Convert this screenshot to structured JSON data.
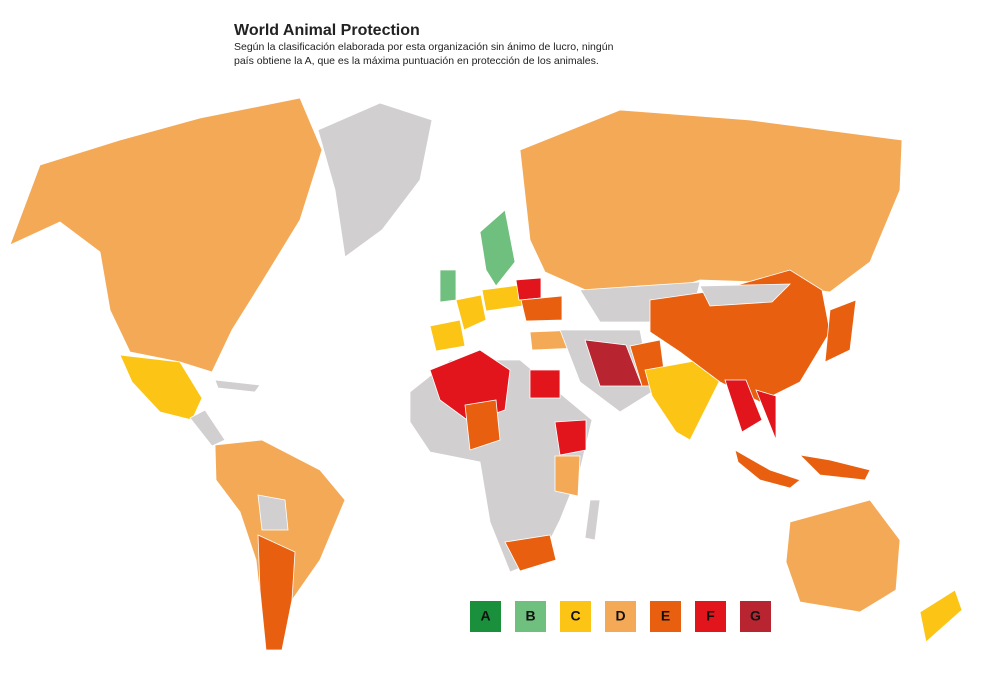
{
  "header": {
    "title": "World Animal Protection",
    "subtitle": [
      "Según la clasificación elaborada por esta organización sin ánimo de lucro, ningún",
      "país obtiene la A, que es la máxima puntuación en protección de los animales."
    ]
  },
  "legend": [
    {
      "label": "A",
      "color": "#1a8f3c"
    },
    {
      "label": "B",
      "color": "#6fbf7f"
    },
    {
      "label": "C",
      "color": "#fcc515"
    },
    {
      "label": "D",
      "color": "#f4a956"
    },
    {
      "label": "E",
      "color": "#e8600f"
    },
    {
      "label": "F",
      "color": "#e2141c"
    },
    {
      "label": "G",
      "color": "#b82531"
    }
  ]
}
